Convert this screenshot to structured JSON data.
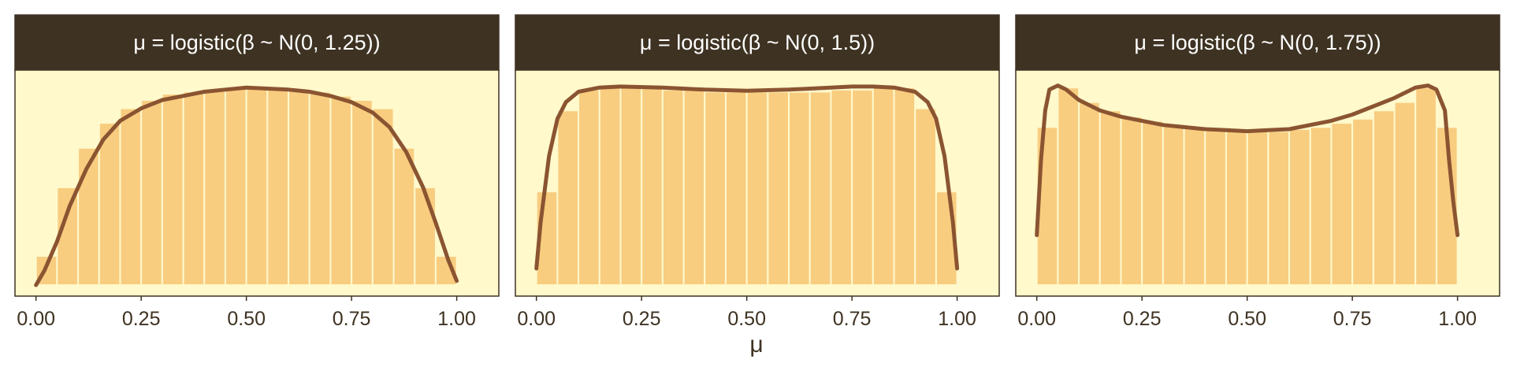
{
  "colors": {
    "header_bg": "#3e3222",
    "header_text": "#ffffff",
    "panel_bg": "#fff9cc",
    "bar_fill": "#f8cd80",
    "bar_stroke": "#fff9cc",
    "curve": "#8b5431",
    "frame": "#3e3222",
    "tick_text": "#3e3222"
  },
  "figure": {
    "xlabel": "μ"
  },
  "chart_data": [
    {
      "type": "bar",
      "overlay": "density-line",
      "title": "μ = logistic(β ~ N(0, 1.25))",
      "xticks": [
        "0.00",
        "0.25",
        "0.50",
        "0.75",
        "1.00"
      ],
      "xlim": [
        -0.05,
        1.1
      ],
      "ylim": [
        0,
        1.0
      ],
      "bin_edges": [
        0,
        0.05,
        0.1,
        0.15,
        0.2,
        0.25,
        0.3,
        0.35,
        0.4,
        0.45,
        0.5,
        0.55,
        0.6,
        0.65,
        0.7,
        0.75,
        0.8,
        0.85,
        0.9,
        0.95,
        1.0
      ],
      "bar_values": [
        0.14,
        0.47,
        0.66,
        0.78,
        0.85,
        0.89,
        0.92,
        0.93,
        0.94,
        0.95,
        0.95,
        0.95,
        0.94,
        0.93,
        0.91,
        0.89,
        0.85,
        0.66,
        0.47,
        0.14
      ],
      "curve": {
        "x": [
          0.0,
          0.02,
          0.05,
          0.08,
          0.12,
          0.16,
          0.2,
          0.25,
          0.3,
          0.35,
          0.4,
          0.45,
          0.5,
          0.55,
          0.6,
          0.65,
          0.7,
          0.75,
          0.8,
          0.84,
          0.88,
          0.92,
          0.95,
          0.98,
          1.0
        ],
        "y": [
          0.0,
          0.07,
          0.21,
          0.38,
          0.56,
          0.7,
          0.79,
          0.85,
          0.89,
          0.91,
          0.93,
          0.94,
          0.95,
          0.945,
          0.94,
          0.93,
          0.91,
          0.88,
          0.83,
          0.76,
          0.64,
          0.47,
          0.3,
          0.12,
          0.02
        ]
      }
    },
    {
      "type": "bar",
      "overlay": "density-line",
      "title": "μ = logistic(β ~ N(0, 1.5))",
      "xticks": [
        "0.00",
        "0.25",
        "0.50",
        "0.75",
        "1.00"
      ],
      "xlim": [
        -0.05,
        1.1
      ],
      "ylim": [
        0,
        1.0
      ],
      "bin_edges": [
        0,
        0.05,
        0.1,
        0.15,
        0.2,
        0.25,
        0.3,
        0.35,
        0.4,
        0.45,
        0.5,
        0.55,
        0.6,
        0.65,
        0.7,
        0.75,
        0.8,
        0.85,
        0.9,
        0.95,
        1.0
      ],
      "bar_values": [
        0.45,
        0.84,
        0.94,
        0.95,
        0.95,
        0.95,
        0.94,
        0.94,
        0.93,
        0.93,
        0.93,
        0.93,
        0.93,
        0.93,
        0.94,
        0.94,
        0.95,
        0.95,
        0.85,
        0.45
      ],
      "curve": {
        "x": [
          0.0,
          0.01,
          0.03,
          0.05,
          0.07,
          0.1,
          0.15,
          0.2,
          0.3,
          0.4,
          0.5,
          0.6,
          0.7,
          0.75,
          0.8,
          0.85,
          0.9,
          0.93,
          0.95,
          0.97,
          0.99,
          1.0
        ],
        "y": [
          0.08,
          0.3,
          0.62,
          0.8,
          0.88,
          0.93,
          0.95,
          0.955,
          0.95,
          0.94,
          0.935,
          0.94,
          0.95,
          0.955,
          0.955,
          0.95,
          0.93,
          0.88,
          0.8,
          0.62,
          0.3,
          0.08
        ]
      }
    },
    {
      "type": "bar",
      "overlay": "density-line",
      "title": "μ = logistic(β ~ N(0, 1.75))",
      "xticks": [
        "0.00",
        "0.25",
        "0.50",
        "0.75",
        "1.00"
      ],
      "xlim": [
        -0.05,
        1.1
      ],
      "ylim": [
        0,
        1.0
      ],
      "bin_edges": [
        0,
        0.05,
        0.1,
        0.15,
        0.2,
        0.25,
        0.3,
        0.35,
        0.4,
        0.45,
        0.5,
        0.55,
        0.6,
        0.65,
        0.7,
        0.75,
        0.8,
        0.85,
        0.9,
        0.95,
        1.0
      ],
      "bar_values": [
        0.76,
        0.95,
        0.88,
        0.84,
        0.81,
        0.79,
        0.77,
        0.76,
        0.75,
        0.74,
        0.74,
        0.74,
        0.75,
        0.76,
        0.78,
        0.8,
        0.84,
        0.88,
        0.95,
        0.76
      ],
      "curve": {
        "x": [
          0.0,
          0.01,
          0.02,
          0.03,
          0.05,
          0.07,
          0.1,
          0.15,
          0.2,
          0.25,
          0.3,
          0.35,
          0.4,
          0.45,
          0.5,
          0.55,
          0.6,
          0.65,
          0.7,
          0.75,
          0.8,
          0.85,
          0.9,
          0.93,
          0.95,
          0.97,
          0.98,
          0.99,
          1.0
        ],
        "y": [
          0.24,
          0.6,
          0.84,
          0.94,
          0.96,
          0.94,
          0.89,
          0.84,
          0.81,
          0.79,
          0.77,
          0.76,
          0.75,
          0.745,
          0.74,
          0.745,
          0.75,
          0.77,
          0.79,
          0.82,
          0.86,
          0.9,
          0.95,
          0.96,
          0.94,
          0.84,
          0.6,
          0.4,
          0.24
        ]
      }
    }
  ]
}
